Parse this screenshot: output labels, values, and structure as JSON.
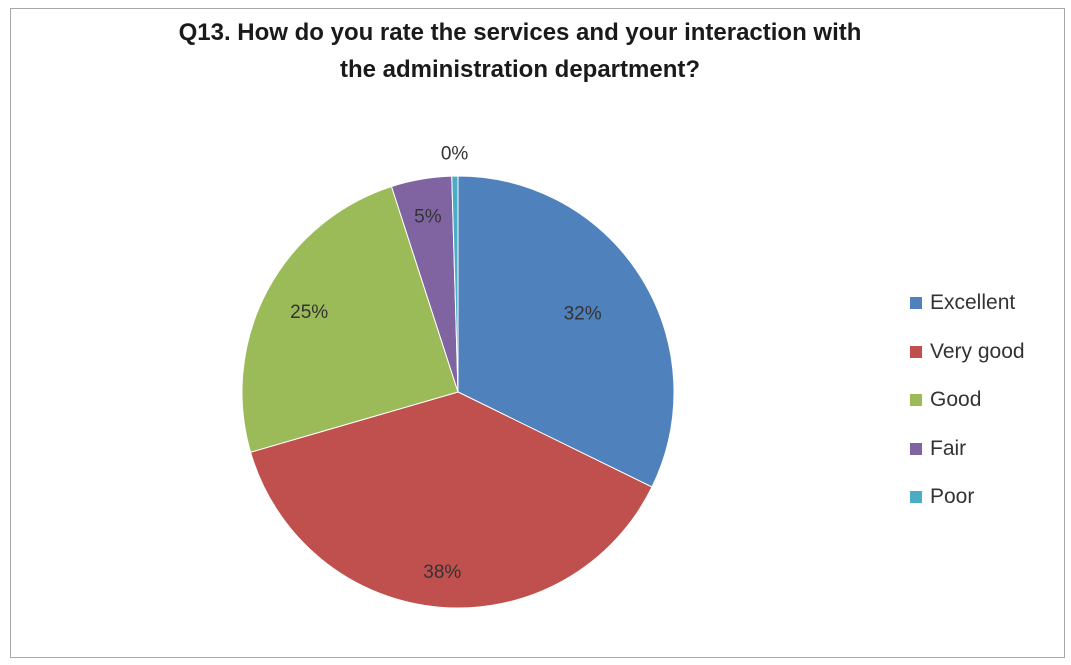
{
  "chart_data": {
    "type": "pie",
    "title": "Q13. How do you rate the services and your interaction with the administration department?",
    "title_lines": [
      "Q13. How do you rate the services and your interaction with",
      "the administration department?"
    ],
    "categories": [
      "Excellent",
      "Very good",
      "Good",
      "Fair",
      "Poor"
    ],
    "values": [
      32,
      38,
      25,
      5,
      0
    ],
    "value_labels": [
      "32%",
      "38%",
      "25%",
      "5%",
      "0%"
    ],
    "colors": [
      "#4f81bd",
      "#c0504d",
      "#9bbb59",
      "#8064a2",
      "#4bacc6"
    ],
    "exact_fractions": [
      0.3225,
      0.3825,
      0.2452,
      0.0452,
      0.0046
    ],
    "legend_position": "right",
    "start_angle": "12 o'clock, clockwise"
  }
}
